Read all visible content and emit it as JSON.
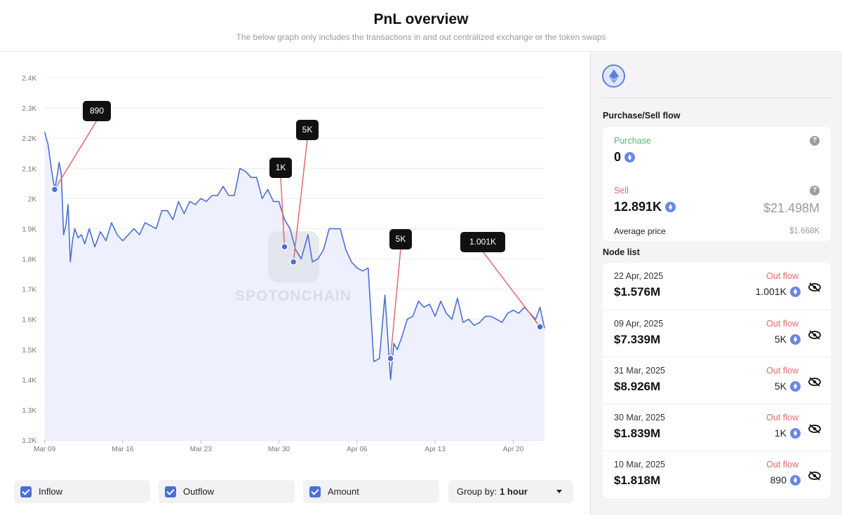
{
  "header": {
    "title": "PnL overview",
    "subtitle": "The below graph only includes the transactions in and out centralized exchange or the token swaps"
  },
  "watermark": "SPOTONCHAIN",
  "colors": {
    "line": "#4a6fd8",
    "fill": "#eef1fd",
    "callout_line": "#e06b6b",
    "callout_bg": "#111111",
    "green": "#56b97b",
    "red": "#e06b6b"
  },
  "chart_data": {
    "type": "line",
    "x_tick_labels": [
      "Mar 09",
      "Mar 16",
      "Mar 23",
      "Mar 30",
      "Apr 06",
      "Apr 13",
      "Apr 20"
    ],
    "y_tick_labels": [
      "1.2K",
      "1.3K",
      "1.4K",
      "1.5K",
      "1.6K",
      "1.7K",
      "1.8K",
      "1.9K",
      "2K",
      "2.1K",
      "2.2K",
      "2.3K",
      "2.4K"
    ],
    "ylim": [
      1200,
      2400
    ],
    "xlim_days": [
      -0.1,
      44.8
    ],
    "grid": true,
    "series": [
      {
        "x_days": [
          0,
          0.3,
          0.6,
          0.9,
          1.1,
          1.3,
          1.5,
          1.7,
          1.9,
          2.1,
          2.3,
          2.5,
          2.7,
          3,
          3.3,
          3.6,
          4,
          4.5,
          5,
          5.5,
          6,
          6.5,
          7,
          7.5,
          8,
          8.5,
          9,
          9.5,
          10,
          10.5,
          11,
          11.5,
          12,
          12.5,
          13,
          13.5,
          14,
          14.5,
          15,
          15.5,
          16,
          16.5,
          17,
          17.5,
          18,
          18.5,
          19,
          19.5,
          20,
          20.5,
          21,
          21.5,
          22,
          22.5,
          23,
          23.3,
          23.6,
          24,
          24.5,
          25,
          25.5,
          26,
          26.5,
          27,
          27.5,
          28,
          28.5,
          29,
          29.5,
          30,
          30.5,
          31,
          31.3,
          31.6,
          32,
          32.5,
          33,
          33.5,
          34,
          34.5,
          35,
          35.5,
          36,
          36.5,
          37,
          37.5,
          38,
          38.5,
          39,
          39.5,
          40,
          40.5,
          41,
          41.5,
          42,
          42.5,
          43,
          43.5,
          44,
          44.4,
          44.8
        ],
        "values": [
          2220,
          2180,
          2100,
          2030,
          2070,
          2120,
          2080,
          1880,
          1910,
          1980,
          1790,
          1860,
          1900,
          1870,
          1880,
          1850,
          1900,
          1840,
          1890,
          1860,
          1920,
          1880,
          1860,
          1880,
          1900,
          1880,
          1920,
          1910,
          1900,
          1960,
          1960,
          1930,
          1990,
          1950,
          1990,
          1980,
          2000,
          1990,
          2010,
          2010,
          2040,
          2010,
          2010,
          2100,
          2090,
          2070,
          2070,
          2000,
          2030,
          1990,
          1990,
          1930,
          1900,
          1830,
          1800,
          1840,
          1880,
          1790,
          1800,
          1830,
          1900,
          1900,
          1900,
          1830,
          1790,
          1770,
          1760,
          1770,
          1460,
          1470,
          1680,
          1400,
          1520,
          1500,
          1540,
          1600,
          1610,
          1660,
          1640,
          1650,
          1610,
          1660,
          1620,
          1600,
          1670,
          1590,
          1600,
          1580,
          1590,
          1610,
          1610,
          1600,
          1590,
          1620,
          1630,
          1620,
          1640,
          1620,
          1600,
          1640,
          1570
        ]
      }
    ],
    "callouts": [
      {
        "label": "890",
        "x_day": 0.9,
        "value": 2030
      },
      {
        "label": "1K",
        "x_day": 21.5,
        "value": 1840
      },
      {
        "label": "5K",
        "x_day": 22.3,
        "value": 1790
      },
      {
        "label": "5K",
        "x_day": 31.0,
        "value": 1470
      },
      {
        "label": "1.001K",
        "x_day": 44.4,
        "value": 1575
      }
    ]
  },
  "controls": {
    "inflow": "Inflow",
    "outflow": "Outflow",
    "amount": "Amount",
    "group_by_label": "Group by:",
    "group_by_value": "1 hour"
  },
  "sidebar": {
    "purchase_sell_title": "Purchase/Sell flow",
    "purchase": {
      "label": "Purchase",
      "value": "0"
    },
    "sell": {
      "label": "Sell",
      "value": "12.891K",
      "usd": "$21.498M",
      "avg_label": "Average price",
      "avg_value": "$1.668K"
    },
    "node_list_title": "Node list",
    "nodes": [
      {
        "date": "22 Apr, 2025",
        "amount": "$1.576M",
        "flow": "Out flow",
        "qty": "1.001K"
      },
      {
        "date": "09 Apr, 2025",
        "amount": "$7.339M",
        "flow": "Out flow",
        "qty": "5K"
      },
      {
        "date": "31 Mar, 2025",
        "amount": "$8.926M",
        "flow": "Out flow",
        "qty": "5K"
      },
      {
        "date": "30 Mar, 2025",
        "amount": "$1.839M",
        "flow": "Out flow",
        "qty": "1K"
      },
      {
        "date": "10 Mar, 2025",
        "amount": "$1.818M",
        "flow": "Out flow",
        "qty": "890"
      }
    ]
  }
}
